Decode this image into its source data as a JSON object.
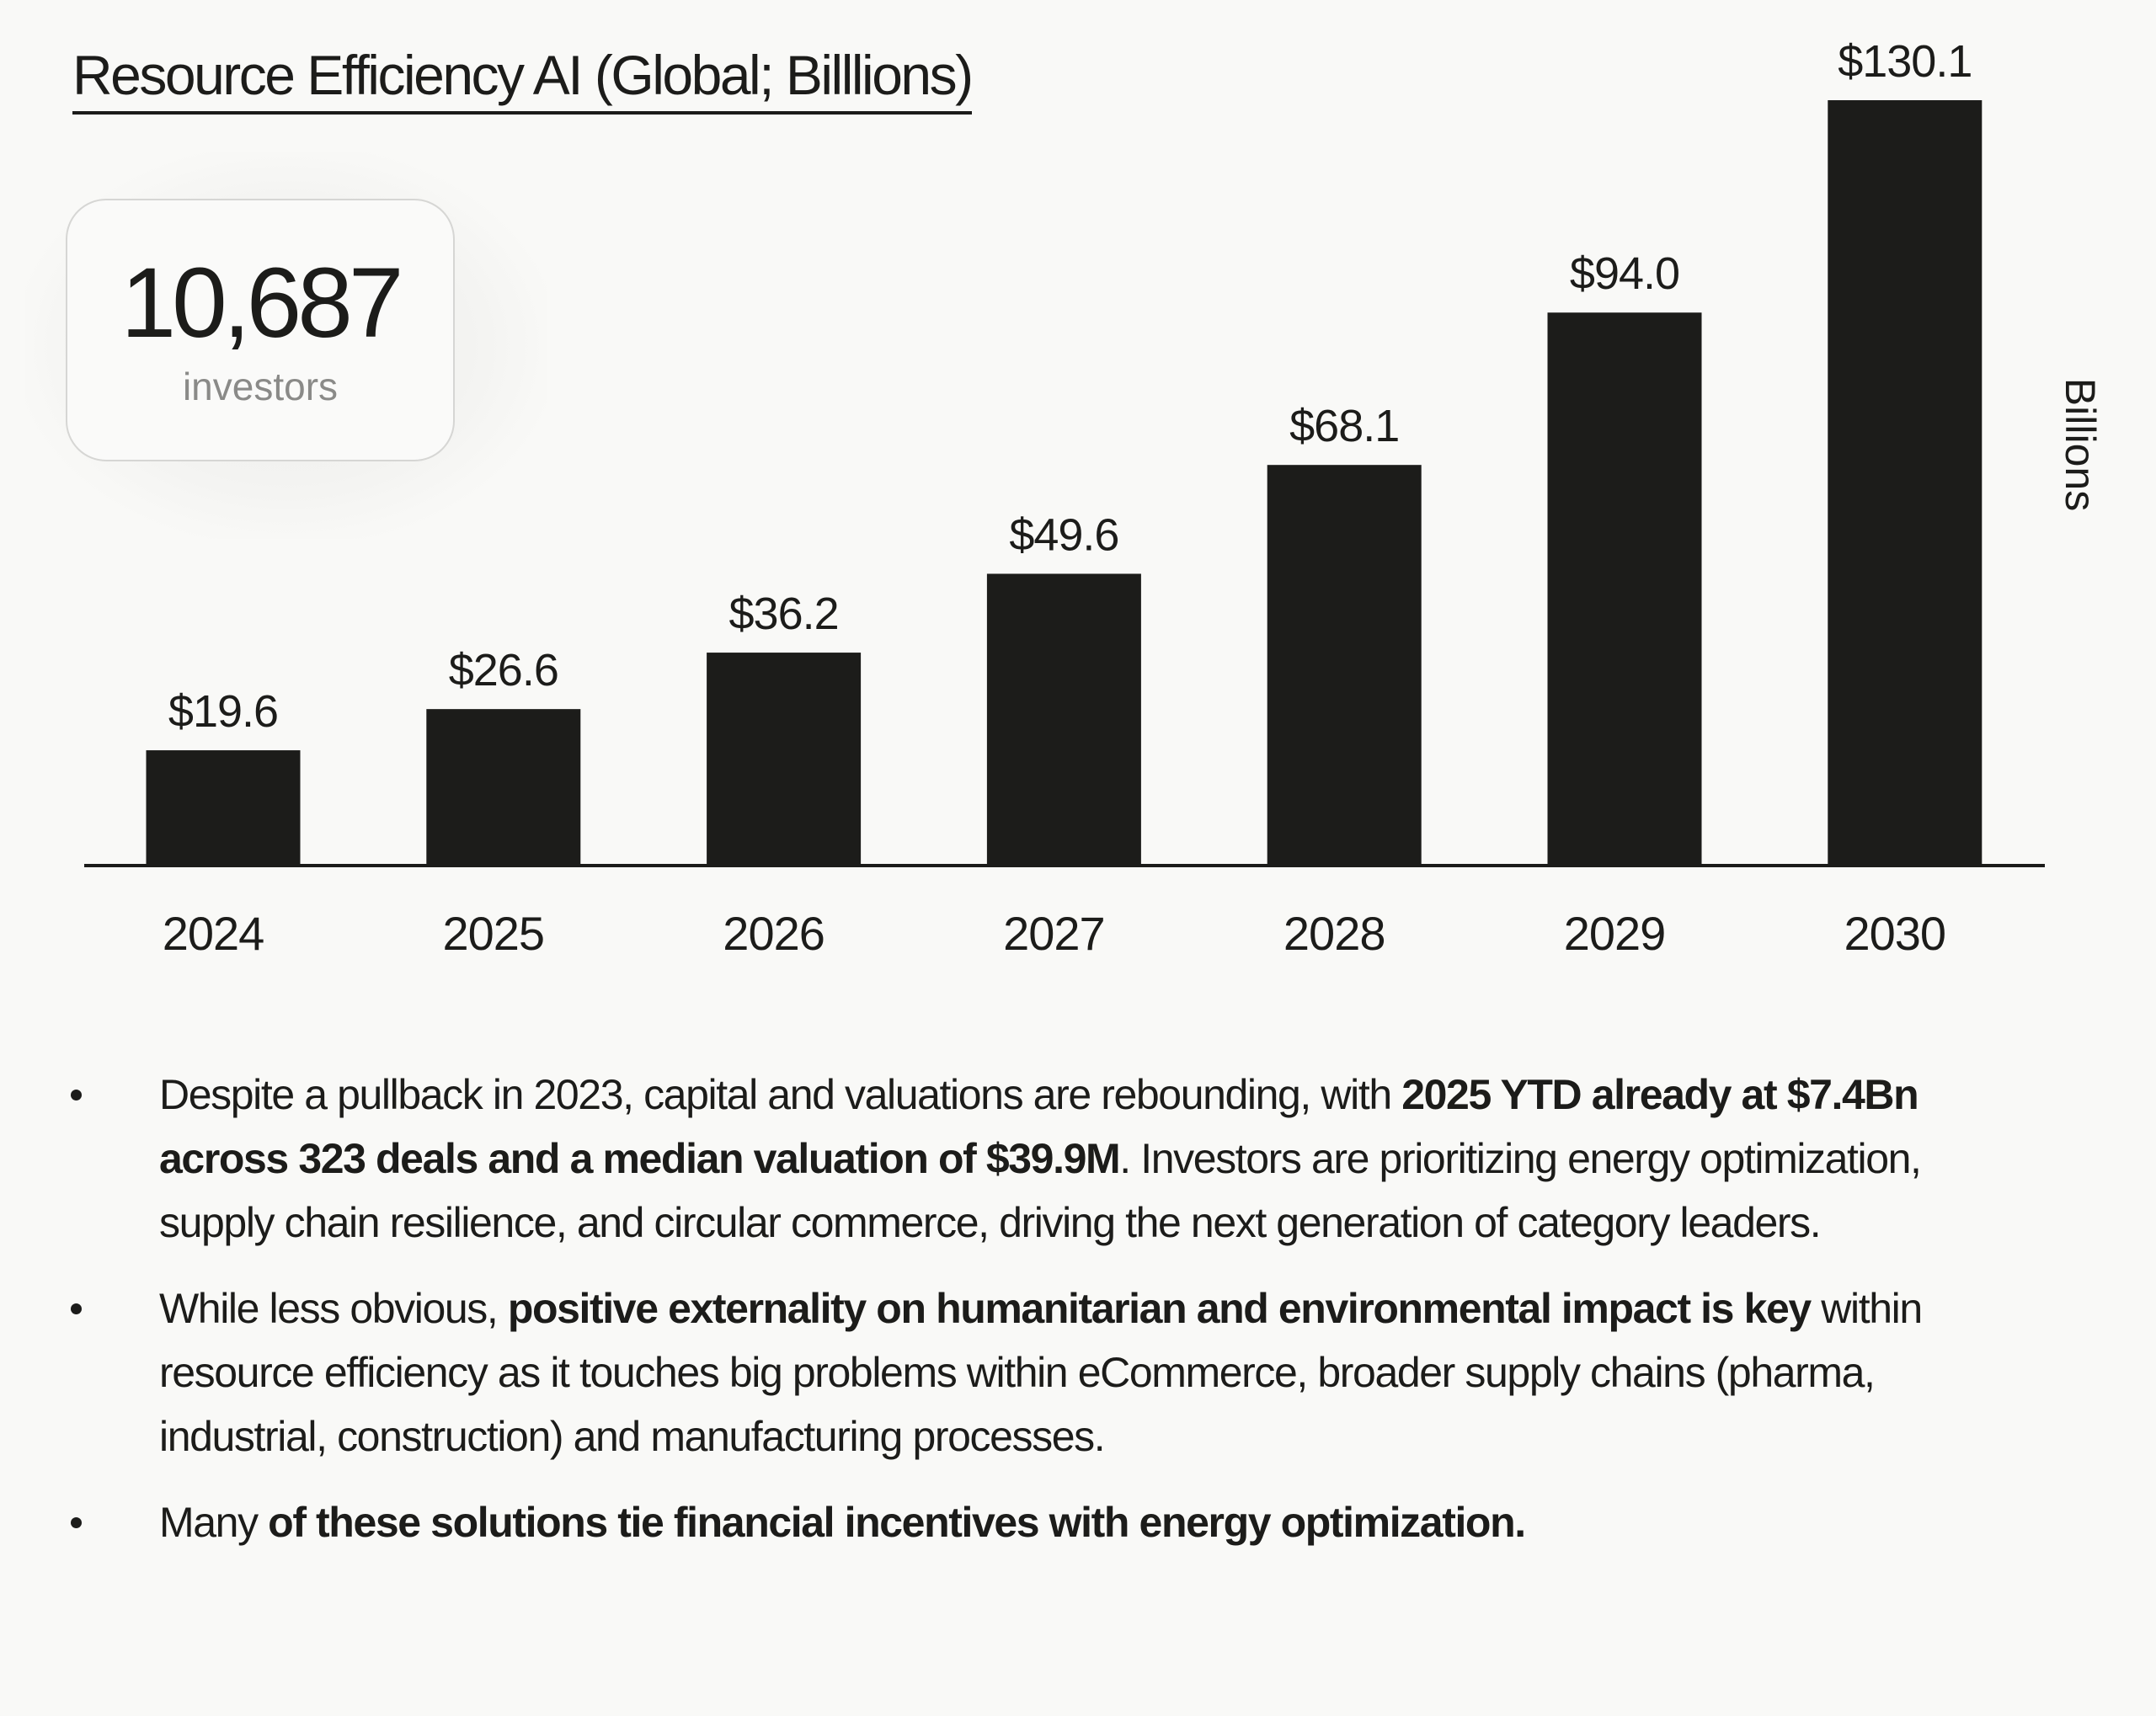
{
  "title": "Resource Efficiency AI (Global; Billlions)",
  "stat_card": {
    "value": "10,687",
    "label": "investors"
  },
  "chart_data": {
    "type": "bar",
    "title": "Resource Efficiency AI (Global; Billlions)",
    "categories": [
      "2024",
      "2025",
      "2026",
      "2027",
      "2028",
      "2029",
      "2030"
    ],
    "values": [
      19.6,
      26.6,
      36.2,
      49.6,
      68.1,
      94.0,
      130.1
    ],
    "data_labels": [
      "$19.6",
      "$26.6",
      "$36.2",
      "$49.6",
      "$68.1",
      "$94.0",
      "$130.1"
    ],
    "xlabel": "",
    "ylabel": "Billions",
    "ylim": [
      0,
      130.1
    ],
    "grid": false,
    "legend": "none",
    "bar_color": "#1c1c1a"
  },
  "bullets": [
    {
      "segments": [
        {
          "text": "Despite a pullback in 2023, capital and valuations are rebounding, with ",
          "bold": false
        },
        {
          "text": "2025 YTD already at $7.4Bn across 323 deals and a median valuation of $39.9M",
          "bold": true
        },
        {
          "text": ". Investors are prioritizing energy optimization, supply chain resilience, and circular commerce, driving the next generation of category leaders.",
          "bold": false
        }
      ]
    },
    {
      "segments": [
        {
          "text": "While less obvious, ",
          "bold": false
        },
        {
          "text": "positive externality on humanitarian and environmental impact is key",
          "bold": true
        },
        {
          "text": " within resource efficiency as it touches big problems within eCommerce, broader supply chains (pharma, industrial, construction) and manufacturing processes.",
          "bold": false
        }
      ]
    },
    {
      "segments": [
        {
          "text": "Many ",
          "bold": false
        },
        {
          "text": "of these solutions tie financial incentives with energy optimization.",
          "bold": true
        }
      ]
    }
  ]
}
